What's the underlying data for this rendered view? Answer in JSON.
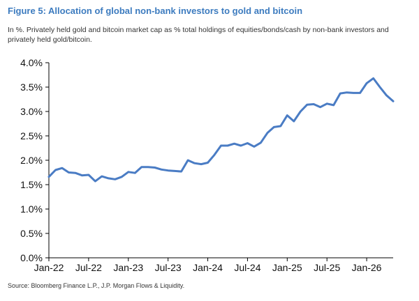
{
  "figure": {
    "title": "Figure 5: Allocation of global non-bank investors to gold and bitcoin",
    "subtitle": "In %. Privately held gold and bitcoin market cap as % total holdings of equities/bonds/cash by non-bank investors and privately held gold/bitcoin.",
    "source": "Source: Bloomberg Finance L.P., J.P. Morgan Flows & Liquidity."
  },
  "chart_data": {
    "type": "line",
    "title": "Figure 5: Allocation of global non-bank investors to gold and bitcoin",
    "xlabel": "",
    "ylabel": "",
    "ylim": [
      0,
      4.0
    ],
    "yticks": [
      "0.0%",
      "0.5%",
      "1.0%",
      "1.5%",
      "2.0%",
      "2.5%",
      "3.0%",
      "3.5%",
      "4.0%"
    ],
    "xticks": [
      "Jan-22",
      "Jul-22",
      "Jan-23",
      "Jul-23",
      "Jan-24",
      "Jul-24",
      "Jan-25",
      "Jul-25",
      "Jan-26"
    ],
    "xrange": [
      "2022-01",
      "2026-05"
    ],
    "grid": false,
    "legend": "none",
    "color": "#4a7cc4",
    "series": [
      {
        "x": [
          "2022-01",
          "2022-02",
          "2022-03",
          "2022-04",
          "2022-05",
          "2022-06",
          "2022-07",
          "2022-08",
          "2022-09",
          "2022-10",
          "2022-11",
          "2022-12",
          "2023-01",
          "2023-02",
          "2023-03",
          "2023-04",
          "2023-05",
          "2023-06",
          "2023-07",
          "2023-08",
          "2023-09",
          "2023-10",
          "2023-11",
          "2023-12",
          "2024-01",
          "2024-02",
          "2024-03",
          "2024-04",
          "2024-05",
          "2024-06",
          "2024-07",
          "2024-08",
          "2024-09",
          "2024-10",
          "2024-11",
          "2024-12",
          "2025-01",
          "2025-02",
          "2025-03",
          "2025-04",
          "2025-05",
          "2025-06",
          "2025-07",
          "2025-08",
          "2025-09",
          "2025-10",
          "2025-11",
          "2025-12",
          "2026-01",
          "2026-02",
          "2026-03",
          "2026-04",
          "2026-05"
        ],
        "values": [
          1.66,
          1.8,
          1.84,
          1.75,
          1.74,
          1.69,
          1.7,
          1.57,
          1.67,
          1.63,
          1.61,
          1.66,
          1.76,
          1.74,
          1.86,
          1.86,
          1.85,
          1.81,
          1.79,
          1.78,
          1.77,
          2.0,
          1.94,
          1.92,
          1.95,
          2.11,
          2.3,
          2.3,
          2.34,
          2.3,
          2.35,
          2.28,
          2.36,
          2.56,
          2.68,
          2.7,
          2.92,
          2.8,
          3.0,
          3.14,
          3.15,
          3.09,
          3.16,
          3.13,
          3.37,
          3.39,
          3.38,
          3.38,
          3.58,
          3.68,
          3.5,
          3.33,
          3.21
        ]
      }
    ]
  }
}
